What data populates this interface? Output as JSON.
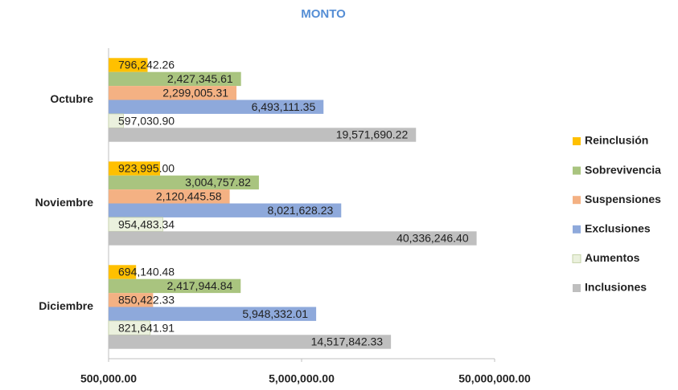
{
  "chart_data": {
    "type": "bar",
    "orientation": "horizontal",
    "title": "MONTO",
    "categories": [
      "Octubre",
      "Noviembre",
      "Diciembre"
    ],
    "series": [
      {
        "name": "Reinclusión",
        "color": "#FFC000",
        "values": [
          796242.26,
          923995.0,
          694140.48
        ],
        "value_labels": [
          "796,242.26",
          "923,995.00",
          "694,140.48"
        ]
      },
      {
        "name": "Sobrevivencia",
        "color": "#A9C47F",
        "values": [
          2427345.61,
          3004757.82,
          2417944.84
        ],
        "value_labels": [
          "2,427,345.61",
          "3,004,757.82",
          "2,417,944.84"
        ]
      },
      {
        "name": "Suspensiones",
        "color": "#F4B183",
        "values": [
          2299005.31,
          2120445.58,
          850422.33
        ],
        "value_labels": [
          "2,299,005.31",
          "2,120,445.58",
          "850,422.33"
        ]
      },
      {
        "name": "Exclusiones",
        "color": "#8EA9DB",
        "values": [
          6493111.35,
          8021628.23,
          5948332.01
        ],
        "value_labels": [
          "6,493,111.35",
          "8,021,628.23",
          "5,948,332.01"
        ]
      },
      {
        "name": "Aumentos",
        "color": "#EBF1DE",
        "values": [
          597030.9,
          954483.34,
          821641.91
        ],
        "value_labels": [
          "597,030.90",
          "954,483.34",
          "821,641.91"
        ]
      },
      {
        "name": "Inclusiones",
        "color": "#BFBFBF",
        "values": [
          19571690.22,
          40336246.4,
          14517842.33
        ],
        "value_labels": [
          "19,571,690.22",
          "40,336,246.40",
          "14,517,842.33"
        ]
      }
    ],
    "xlim": [
      500000,
      50000000
    ],
    "xticks": [
      {
        "value": 500000,
        "label": "500,000.00"
      },
      {
        "value": 5000000,
        "label": "5,000,000.00"
      },
      {
        "value": 50000000,
        "label": "50,000,000.00"
      }
    ],
    "log_scale": true,
    "grid": false,
    "legend": "right"
  }
}
